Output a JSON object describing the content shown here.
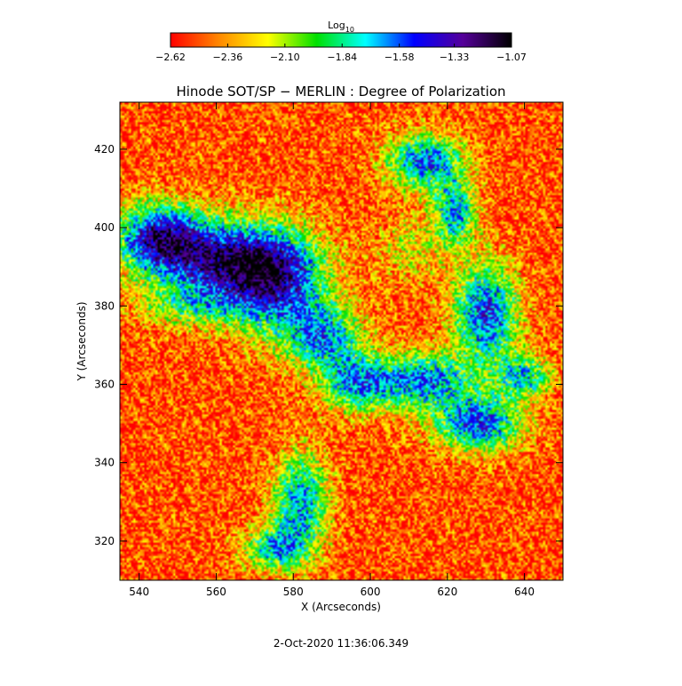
{
  "chart_data": {
    "type": "heatmap",
    "title": "Hinode SOT/SP − MERLIN : Degree of Polarization",
    "xlabel": "X (Arcseconds)",
    "ylabel": "Y (Arcseconds)",
    "xlim": [
      535,
      650
    ],
    "ylim": [
      310,
      432
    ],
    "x_ticks": [
      "540",
      "560",
      "580",
      "600",
      "620",
      "640"
    ],
    "x_tick_values": [
      540,
      560,
      580,
      600,
      620,
      640
    ],
    "y_ticks": [
      "320",
      "340",
      "360",
      "380",
      "400",
      "420"
    ],
    "y_tick_values": [
      320,
      340,
      360,
      380,
      400,
      420
    ],
    "colorbar": {
      "label_main": "Log",
      "label_sub": "10",
      "range": [
        -2.62,
        -1.07
      ],
      "tick_labels": [
        "−2.62",
        "−2.36",
        "−2.10",
        "−1.84",
        "−1.58",
        "−1.33",
        "−1.07"
      ],
      "tick_values": [
        -2.62,
        -2.36,
        -2.1,
        -1.84,
        -1.58,
        -1.33,
        -1.07
      ],
      "colormap": [
        "#ff0000",
        "#ff8800",
        "#ffff00",
        "#00e000",
        "#00ffff",
        "#0000ff",
        "#550099",
        "#000000"
      ]
    },
    "background_level": -2.5,
    "features": [
      {
        "x": 562,
        "y": 392,
        "sx": 14,
        "sy": 7,
        "amp": 1.05
      },
      {
        "x": 575,
        "y": 385,
        "sx": 9,
        "sy": 9,
        "amp": 0.9
      },
      {
        "x": 545,
        "y": 398,
        "sx": 8,
        "sy": 6,
        "amp": 0.95
      },
      {
        "x": 588,
        "y": 372,
        "sx": 7,
        "sy": 6,
        "amp": 0.8
      },
      {
        "x": 596,
        "y": 360,
        "sx": 6,
        "sy": 5,
        "amp": 0.75
      },
      {
        "x": 582,
        "y": 330,
        "sx": 5,
        "sy": 9,
        "amp": 0.85
      },
      {
        "x": 575,
        "y": 318,
        "sx": 6,
        "sy": 4,
        "amp": 0.7
      },
      {
        "x": 614,
        "y": 417,
        "sx": 7,
        "sy": 5,
        "amp": 0.9
      },
      {
        "x": 622,
        "y": 404,
        "sx": 4,
        "sy": 6,
        "amp": 0.8
      },
      {
        "x": 630,
        "y": 378,
        "sx": 6,
        "sy": 9,
        "amp": 1.0
      },
      {
        "x": 613,
        "y": 361,
        "sx": 9,
        "sy": 5,
        "amp": 0.9
      },
      {
        "x": 628,
        "y": 350,
        "sx": 8,
        "sy": 5,
        "amp": 0.95
      },
      {
        "x": 640,
        "y": 362,
        "sx": 5,
        "sy": 4,
        "amp": 0.7
      },
      {
        "x": 553,
        "y": 380,
        "sx": 9,
        "sy": 4,
        "amp": 0.45
      },
      {
        "x": 610,
        "y": 395,
        "sx": 6,
        "sy": 6,
        "amp": 0.3
      }
    ]
  },
  "timestamp": "2-Oct-2020 11:36:06.349"
}
